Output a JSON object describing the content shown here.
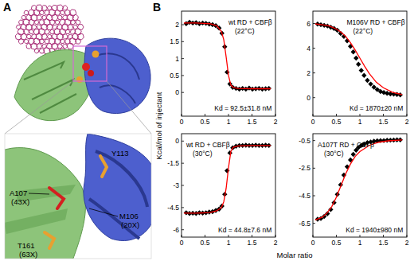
{
  "panel_a": {
    "label": "A",
    "annotations": [
      "Y113",
      "A107",
      "(43X)",
      "M106",
      "(20X)",
      "T161",
      "(63X)"
    ]
  },
  "shared": {
    "label": "B",
    "y_label": "Kcal/mol of injectant",
    "x_label": "Molar ratio"
  },
  "chart_data": [
    {
      "type": "scatter",
      "title": "wt RD + CBFβ",
      "subtitle": "(22°C)",
      "annotation": "Kd = 92.5±31.8 nM",
      "xlim": [
        0,
        2
      ],
      "xticks": [
        0,
        0.5,
        1,
        1.5,
        2
      ],
      "ylim": [
        -0.7,
        2.4
      ],
      "yticks": [
        0,
        0.5,
        1,
        1.5,
        2
      ],
      "series": [
        {
          "type": "scatter",
          "color": "#000000",
          "marker": "diamond",
          "x": [
            0.1,
            0.17,
            0.24,
            0.31,
            0.38,
            0.45,
            0.52,
            0.59,
            0.66,
            0.73,
            0.8,
            0.86,
            0.92,
            0.97,
            1.03,
            1.09,
            1.16,
            1.23,
            1.3,
            1.37,
            1.44,
            1.51,
            1.58,
            1.65,
            1.72,
            1.79,
            1.86
          ],
          "values": [
            2.03,
            2.07,
            2.05,
            2.06,
            2.03,
            2.05,
            2.04,
            2.02,
            2.0,
            1.97,
            1.9,
            1.75,
            1.35,
            0.6,
            0.25,
            0.15,
            0.12,
            0.1,
            0.12,
            0.1,
            0.13,
            0.1,
            0.11,
            0.12,
            0.1,
            0.11,
            0.12
          ]
        },
        {
          "type": "line",
          "color": "#ff0000",
          "line_style": "solid",
          "x": [
            0.05,
            0.3,
            0.6,
            0.75,
            0.85,
            0.9,
            0.95,
            1.0,
            1.05,
            1.1,
            1.2,
            1.5,
            1.9
          ],
          "values": [
            2.05,
            2.05,
            2.03,
            1.97,
            1.8,
            1.55,
            1.05,
            0.5,
            0.22,
            0.15,
            0.12,
            0.11,
            0.11
          ]
        }
      ]
    },
    {
      "type": "scatter",
      "title": "M106V RD + CBFβ",
      "subtitle": "(22°C)",
      "annotation": "Kd = 1870±20 nM",
      "xlim": [
        0,
        2
      ],
      "xticks": [
        0,
        0.5,
        1,
        1.5,
        2
      ],
      "ylim": [
        -1.5,
        7
      ],
      "yticks": [
        0,
        2,
        4,
        6
      ],
      "series": [
        {
          "type": "scatter",
          "color": "#000000",
          "marker": "diamond",
          "x": [
            0.1,
            0.17,
            0.24,
            0.31,
            0.38,
            0.45,
            0.52,
            0.59,
            0.66,
            0.73,
            0.8,
            0.86,
            0.92,
            0.97,
            1.03,
            1.09,
            1.16,
            1.23,
            1.3,
            1.37,
            1.44,
            1.51,
            1.58,
            1.65,
            1.72,
            1.79,
            1.86
          ],
          "values": [
            5.95,
            5.9,
            5.85,
            5.8,
            5.7,
            5.6,
            5.45,
            5.2,
            4.95,
            4.6,
            4.15,
            3.7,
            3.2,
            2.7,
            2.2,
            1.8,
            1.4,
            1.1,
            0.85,
            0.65,
            0.5,
            0.42,
            0.35,
            0.3,
            0.28,
            0.25,
            0.22
          ]
        },
        {
          "type": "line",
          "color": "#ff0000",
          "line_style": "solid",
          "x": [
            0.05,
            0.2,
            0.35,
            0.5,
            0.6,
            0.7,
            0.8,
            0.9,
            1.0,
            1.1,
            1.2,
            1.35,
            1.5,
            1.7,
            1.9
          ],
          "values": [
            5.97,
            5.9,
            5.8,
            5.55,
            5.3,
            4.95,
            4.45,
            3.85,
            3.2,
            2.55,
            1.95,
            1.25,
            0.8,
            0.42,
            0.25
          ]
        }
      ]
    },
    {
      "type": "scatter",
      "title": "wt RD + CBFβ",
      "subtitle": "(30°C)",
      "annotation": "Kd = 44.8±7.6 nM",
      "xlim": [
        0,
        2
      ],
      "xticks": [
        0,
        0.5,
        1,
        1.5,
        2
      ],
      "ylim": [
        -6.5,
        0.5
      ],
      "yticks": [
        -6,
        -4.5,
        -3,
        -1.5,
        0
      ],
      "series": [
        {
          "type": "scatter",
          "color": "#000000",
          "marker": "diamond",
          "x": [
            0.1,
            0.17,
            0.24,
            0.31,
            0.38,
            0.45,
            0.52,
            0.59,
            0.66,
            0.73,
            0.8,
            0.86,
            0.92,
            0.97,
            1.03,
            1.09,
            1.16,
            1.23,
            1.3,
            1.37,
            1.44,
            1.51,
            1.58,
            1.65,
            1.72,
            1.79,
            1.86
          ],
          "values": [
            -4.85,
            -4.9,
            -4.88,
            -4.9,
            -4.85,
            -4.87,
            -4.85,
            -4.8,
            -4.78,
            -4.7,
            -4.6,
            -4.4,
            -3.6,
            -2.0,
            -0.8,
            -0.45,
            -0.35,
            -0.3,
            -0.3,
            -0.28,
            -0.3,
            -0.3,
            -0.28,
            -0.3,
            -0.3,
            -0.28,
            -0.3
          ]
        },
        {
          "type": "line",
          "color": "#ff0000",
          "line_style": "solid",
          "x": [
            0.05,
            0.3,
            0.6,
            0.75,
            0.85,
            0.9,
            0.95,
            1.0,
            1.05,
            1.1,
            1.2,
            1.5,
            1.9
          ],
          "values": [
            -4.88,
            -4.88,
            -4.84,
            -4.72,
            -4.5,
            -4.1,
            -3.2,
            -1.8,
            -0.7,
            -0.42,
            -0.33,
            -0.3,
            -0.3
          ]
        }
      ]
    },
    {
      "type": "scatter",
      "title": "A107T RD + CBFβ",
      "subtitle": "(30°C)",
      "annotation": "Kd = 1940±980 nM",
      "xlim": [
        0,
        2
      ],
      "xticks": [
        0,
        0.5,
        1,
        1.5,
        2
      ],
      "ylim": [
        -7.5,
        0
      ],
      "yticks": [
        -6.5,
        -4.5,
        -2.5,
        -0.5
      ],
      "series": [
        {
          "type": "scatter",
          "color": "#000000",
          "marker": "diamond",
          "x": [
            0.1,
            0.17,
            0.24,
            0.31,
            0.38,
            0.45,
            0.52,
            0.59,
            0.66,
            0.73,
            0.8,
            0.86,
            0.92,
            0.97,
            1.03,
            1.09,
            1.16,
            1.23,
            1.3,
            1.37,
            1.44,
            1.51,
            1.58,
            1.65,
            1.72,
            1.79,
            1.86
          ],
          "values": [
            -6.2,
            -6.15,
            -6.0,
            -5.8,
            -5.5,
            -5.0,
            -4.4,
            -3.7,
            -3.0,
            -2.4,
            -1.9,
            -1.5,
            -1.2,
            -1.0,
            -0.85,
            -0.75,
            -0.65,
            -0.6,
            -0.55,
            -0.52,
            -0.5,
            -0.5,
            -0.48,
            -0.47,
            -0.46,
            -0.45,
            -0.45
          ]
        },
        {
          "type": "line",
          "color": "#ff0000",
          "line_style": "solid",
          "x": [
            0.05,
            0.2,
            0.3,
            0.4,
            0.5,
            0.6,
            0.7,
            0.8,
            0.9,
            1.0,
            1.2,
            1.4,
            1.6,
            1.9
          ],
          "values": [
            -6.25,
            -6.05,
            -5.75,
            -5.3,
            -4.6,
            -3.75,
            -2.9,
            -2.2,
            -1.65,
            -1.3,
            -0.85,
            -0.62,
            -0.52,
            -0.45
          ]
        }
      ]
    }
  ]
}
